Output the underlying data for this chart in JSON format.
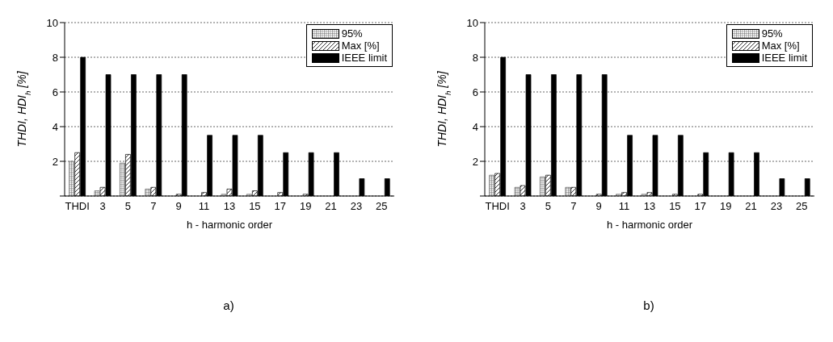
{
  "chart_data": [
    {
      "type": "bar",
      "categories": [
        "THDI",
        "3",
        "5",
        "7",
        "9",
        "11",
        "13",
        "15",
        "17",
        "19",
        "21",
        "23",
        "25"
      ],
      "series": [
        {
          "name": "95%",
          "color": "#606060",
          "values": [
            2.0,
            0.3,
            1.9,
            0.4,
            0,
            0,
            0.1,
            0.1,
            0,
            0,
            0,
            0,
            0
          ]
        },
        {
          "name": "Max [%]",
          "color": "#000000",
          "values": [
            2.5,
            0.5,
            2.4,
            0.5,
            0.1,
            0.2,
            0.4,
            0.3,
            0.2,
            0.1,
            0,
            0,
            0
          ]
        },
        {
          "name": "IEEE limit",
          "color": "#000000",
          "values": [
            8,
            7,
            7,
            7,
            7,
            3.5,
            3.5,
            3.5,
            2.5,
            2.5,
            2.5,
            1,
            1
          ]
        }
      ],
      "xlabel": "h - harmonic order",
      "ylabel": "THDI, HDI$_{h}$  [%]",
      "ylim": [
        0,
        10
      ],
      "yticks": [
        {
          "value": 0,
          "label": null
        },
        2,
        4,
        6,
        8,
        10
      ],
      "grid": "y",
      "legend": "top right",
      "annotations": [
        "a)"
      ]
    },
    {
      "type": "bar",
      "categories": [
        "THDI",
        "3",
        "5",
        "7",
        "9",
        "11",
        "13",
        "15",
        "17",
        "19",
        "21",
        "23",
        "25"
      ],
      "series": [
        {
          "name": "95%",
          "color": "#606060",
          "values": [
            1.2,
            0.5,
            1.1,
            0.5,
            0,
            0.1,
            0.1,
            0,
            0,
            0,
            0,
            0,
            0
          ]
        },
        {
          "name": "Max [%]",
          "color": "#000000",
          "values": [
            1.3,
            0.6,
            1.2,
            0.5,
            0.1,
            0.2,
            0.2,
            0.1,
            0.1,
            0,
            0,
            0,
            0
          ]
        },
        {
          "name": "IEEE limit",
          "color": "#000000",
          "values": [
            8,
            7,
            7,
            7,
            7,
            3.5,
            3.5,
            3.5,
            2.5,
            2.5,
            2.5,
            1,
            1
          ]
        }
      ],
      "xlabel": "h - harmonic order",
      "ylabel": "THDI, HDI$_{h}$  [%]",
      "ylim": [
        0,
        10
      ],
      "yticks": [
        {
          "value": 0,
          "label": null
        },
        2,
        4,
        6,
        8,
        10
      ],
      "grid": "y",
      "legend": "top right",
      "annotations": [
        "b)"
      ]
    }
  ]
}
